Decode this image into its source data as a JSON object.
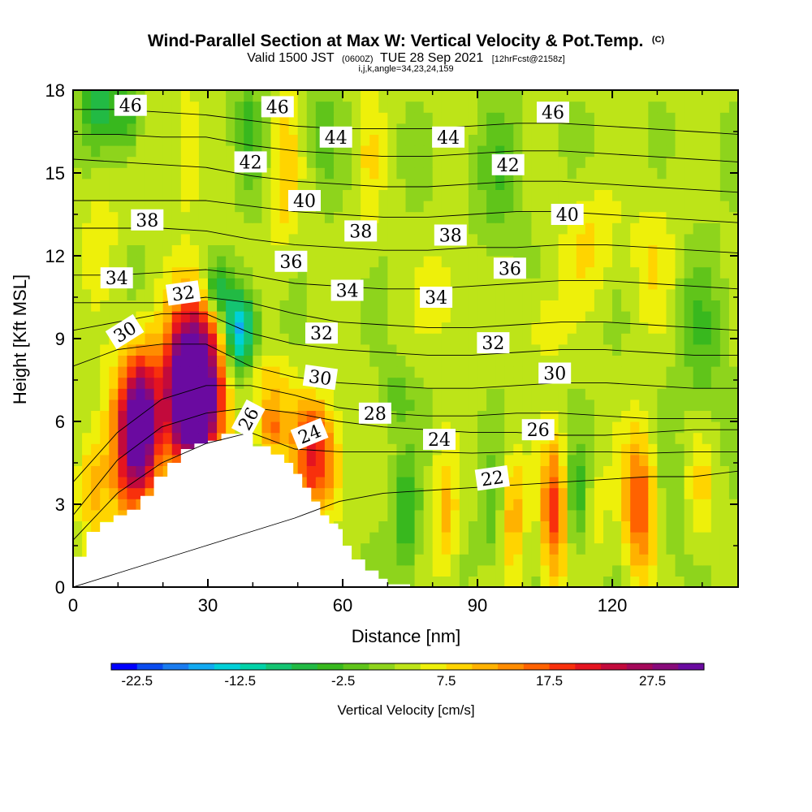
{
  "chart_data": {
    "type": "heatmap",
    "title": "Wind-Parallel Section at Max W: Vertical Velocity & Pot.Temp.",
    "title_suffix": "(C)",
    "subtitle_valid": "Valid 1500 JST",
    "subtitle_utc": "(0600Z)",
    "subtitle_date": "TUE 28 Sep 2021",
    "subtitle_fcst": "[12hrFcst@2158z]",
    "meta_line": "i,j,k,angle=34,23,24,159",
    "xlabel": "Distance [nm]",
    "ylabel": "Height [Kft MSL]",
    "xlim": [
      0,
      148
    ],
    "ylim": [
      0,
      18
    ],
    "x_ticks": [
      "0",
      "30",
      "60",
      "90",
      "120"
    ],
    "y_ticks": [
      "0",
      "3",
      "6",
      "9",
      "12",
      "15",
      "18"
    ],
    "colorbar": {
      "title": "Vertical Velocity [cm/s]",
      "tick_labels": [
        "-22.5",
        "-12.5",
        "-2.5",
        "7.5",
        "17.5",
        "27.5"
      ],
      "colors": [
        "#0000ff",
        "#0a4cf0",
        "#1a7cf0",
        "#12aaf2",
        "#00d0d8",
        "#00d2a8",
        "#14c472",
        "#22ba44",
        "#38b81e",
        "#60c41a",
        "#8ed41c",
        "#bde418",
        "#eef00a",
        "#ffd400",
        "#ffb200",
        "#ff8c00",
        "#ff6200",
        "#f8300c",
        "#e41420",
        "#c20a3c",
        "#a4085a",
        "#880a7a",
        "#6a0aa0"
      ]
    },
    "terrain_profile": [
      {
        "x": 0,
        "h": 1.1
      },
      {
        "x": 3,
        "h": 2.0
      },
      {
        "x": 6,
        "h": 2.35
      },
      {
        "x": 9,
        "h": 2.6
      },
      {
        "x": 12,
        "h": 2.8
      },
      {
        "x": 15,
        "h": 3.3
      },
      {
        "x": 18,
        "h": 4.0
      },
      {
        "x": 21,
        "h": 4.5
      },
      {
        "x": 24,
        "h": 5.0
      },
      {
        "x": 27,
        "h": 5.2
      },
      {
        "x": 30,
        "h": 5.3
      },
      {
        "x": 33,
        "h": 5.55
      },
      {
        "x": 37,
        "h": 5.55
      },
      {
        "x": 40,
        "h": 5.1
      },
      {
        "x": 44,
        "h": 4.8
      },
      {
        "x": 47,
        "h": 4.5
      },
      {
        "x": 49,
        "h": 4.1
      },
      {
        "x": 51,
        "h": 3.6
      },
      {
        "x": 53,
        "h": 3.1
      },
      {
        "x": 55,
        "h": 2.6
      },
      {
        "x": 57,
        "h": 2.3
      },
      {
        "x": 59,
        "h": 2.1
      },
      {
        "x": 60,
        "h": 1.5
      },
      {
        "x": 62,
        "h": 1.0
      },
      {
        "x": 65,
        "h": 0.6
      },
      {
        "x": 68,
        "h": 0.3
      },
      {
        "x": 70,
        "h": 0.1
      },
      {
        "x": 75,
        "h": 0
      }
    ],
    "vertical_velocity_cells": [
      {
        "x": 27,
        "y": 7.8,
        "sx": 6,
        "sy": 2.6,
        "w": 32
      },
      {
        "x": 26,
        "y": 6.2,
        "sx": 6,
        "sy": 2.5,
        "w": 20
      },
      {
        "x": 15,
        "y": 6.0,
        "sx": 4,
        "sy": 2.4,
        "w": 26
      },
      {
        "x": 12,
        "y": 5.0,
        "sx": 6,
        "sy": 3.0,
        "w": 12
      },
      {
        "x": 4,
        "y": 3.6,
        "sx": 3,
        "sy": 1.8,
        "w": 7
      },
      {
        "x": 37,
        "y": 9.3,
        "sx": 3.5,
        "sy": 1.5,
        "w": -20
      },
      {
        "x": 32,
        "y": 10.8,
        "sx": 3,
        "sy": 1.0,
        "w": -10
      },
      {
        "x": 44,
        "y": 5.8,
        "sx": 3,
        "sy": 1.0,
        "w": 12
      },
      {
        "x": 54,
        "y": 4.4,
        "sx": 5,
        "sy": 1.7,
        "w": 17
      },
      {
        "x": 53,
        "y": 6.0,
        "sx": 5,
        "sy": 1.0,
        "w": 8
      },
      {
        "x": 44,
        "y": 7.5,
        "sx": 5,
        "sy": 1.0,
        "w": 6
      },
      {
        "x": 74,
        "y": 2.6,
        "sx": 2.8,
        "sy": 2.0,
        "w": -9
      },
      {
        "x": 83,
        "y": 2.5,
        "sx": 2.6,
        "sy": 2.3,
        "w": 8
      },
      {
        "x": 93,
        "y": 2.6,
        "sx": 2.6,
        "sy": 2.0,
        "w": -5
      },
      {
        "x": 98,
        "y": 2.6,
        "sx": 2.6,
        "sy": 2.2,
        "w": 9
      },
      {
        "x": 107,
        "y": 2.8,
        "sx": 2.8,
        "sy": 2.5,
        "w": 16
      },
      {
        "x": 112,
        "y": 3.3,
        "sx": 2.4,
        "sy": 1.8,
        "w": -7
      },
      {
        "x": 117,
        "y": 2.8,
        "sx": 2.4,
        "sy": 2.0,
        "w": 3
      },
      {
        "x": 126,
        "y": 3.0,
        "sx": 3.5,
        "sy": 2.6,
        "w": 15
      },
      {
        "x": 133,
        "y": 3.0,
        "sx": 2.5,
        "sy": 2.0,
        "w": -3
      },
      {
        "x": 140,
        "y": 3.5,
        "sx": 3,
        "sy": 2.0,
        "w": 5
      },
      {
        "x": 6,
        "y": 17.5,
        "sx": 4,
        "sy": 1.4,
        "w": -10
      },
      {
        "x": 12,
        "y": 17.0,
        "sx": 2.8,
        "sy": 1.4,
        "w": -7
      },
      {
        "x": 25,
        "y": 16.0,
        "sx": 3,
        "sy": 2.5,
        "w": 5
      },
      {
        "x": 39,
        "y": 16.5,
        "sx": 3,
        "sy": 2.0,
        "w": -6
      },
      {
        "x": 47,
        "y": 15.0,
        "sx": 3,
        "sy": 3.0,
        "w": 6
      },
      {
        "x": 56,
        "y": 16.5,
        "sx": 3,
        "sy": 2.0,
        "w": -4
      },
      {
        "x": 66,
        "y": 15.5,
        "sx": 3,
        "sy": 3.0,
        "w": 4
      },
      {
        "x": 95,
        "y": 15.0,
        "sx": 5,
        "sy": 2.5,
        "w": -5
      },
      {
        "x": 115,
        "y": 12.5,
        "sx": 6,
        "sy": 2.0,
        "w": 5
      },
      {
        "x": 129,
        "y": 12.0,
        "sx": 5,
        "sy": 2.5,
        "w": 4
      },
      {
        "x": 82,
        "y": 10.5,
        "sx": 5,
        "sy": 1.8,
        "w": 4
      },
      {
        "x": 105,
        "y": 9.5,
        "sx": 5,
        "sy": 1.5,
        "w": 4
      },
      {
        "x": 72,
        "y": 7.0,
        "sx": 4,
        "sy": 1.2,
        "w": -4
      },
      {
        "x": 140,
        "y": 9.0,
        "sx": 5,
        "sy": 3.0,
        "w": -5
      },
      {
        "x": 6,
        "y": 13.0,
        "sx": 4,
        "sy": 2.0,
        "w": 4
      }
    ],
    "theta_level_heights": [
      {
        "theta": 22,
        "h": [
          0,
          0.5,
          1.0,
          1.5,
          2.0,
          2.5,
          3.1,
          3.4,
          3.5,
          3.6,
          3.7,
          3.8,
          3.9,
          4.0,
          4.0,
          4.2
        ]
      },
      {
        "theta": 24,
        "h": [
          1.7,
          3.4,
          4.5,
          5.2,
          5.6,
          5.0,
          4.9,
          4.9,
          4.9,
          4.85,
          4.9,
          4.9,
          4.9,
          4.85,
          4.9,
          4.9
        ]
      },
      {
        "theta": 26,
        "h": [
          2.6,
          4.6,
          5.8,
          6.3,
          6.5,
          6.3,
          6.0,
          5.8,
          5.7,
          5.6,
          5.6,
          5.5,
          5.5,
          5.6,
          5.7,
          5.7
        ]
      },
      {
        "theta": 28,
        "h": [
          3.8,
          5.6,
          6.8,
          7.3,
          7.3,
          6.95,
          6.5,
          6.3,
          6.2,
          6.2,
          6.3,
          6.3,
          6.2,
          6.1,
          6.1,
          6.1
        ]
      },
      {
        "theta": 30,
        "h": [
          8.0,
          8.6,
          8.8,
          8.8,
          8.0,
          7.6,
          7.4,
          7.3,
          7.2,
          7.2,
          7.3,
          7.4,
          7.4,
          7.3,
          7.2,
          7.2
        ]
      },
      {
        "theta": 32,
        "h": [
          9.3,
          9.6,
          9.9,
          9.9,
          9.2,
          8.8,
          8.6,
          8.5,
          8.4,
          8.4,
          8.5,
          8.6,
          8.6,
          8.5,
          8.4,
          8.4
        ]
      },
      {
        "theta": 34,
        "h": [
          10.3,
          10.3,
          10.3,
          10.5,
          10.3,
          9.9,
          9.6,
          9.5,
          9.4,
          9.4,
          9.5,
          9.6,
          9.6,
          9.5,
          9.4,
          9.3
        ]
      },
      {
        "theta": 36,
        "h": [
          11.3,
          11.3,
          11.4,
          11.5,
          11.3,
          11.0,
          10.9,
          10.8,
          10.8,
          10.9,
          11.0,
          11.1,
          11.1,
          11.0,
          10.9,
          10.8
        ]
      },
      {
        "theta": 38,
        "h": [
          13.0,
          13.0,
          13.0,
          12.9,
          12.6,
          12.4,
          12.3,
          12.2,
          12.2,
          12.3,
          12.3,
          12.4,
          12.4,
          12.3,
          12.2,
          12.1
        ]
      },
      {
        "theta": 40,
        "h": [
          14.0,
          14.0,
          14.0,
          14.0,
          13.8,
          13.6,
          13.5,
          13.4,
          13.4,
          13.5,
          13.6,
          13.6,
          13.5,
          13.4,
          13.3,
          13.2
        ]
      },
      {
        "theta": 42,
        "h": [
          15.5,
          15.4,
          15.3,
          15.2,
          14.9,
          14.7,
          14.6,
          14.5,
          14.5,
          14.6,
          14.7,
          14.7,
          14.6,
          14.5,
          14.4,
          14.3
        ]
      },
      {
        "theta": 44,
        "h": [
          16.4,
          16.4,
          16.3,
          16.3,
          16.0,
          15.8,
          15.7,
          15.6,
          15.6,
          15.7,
          15.8,
          15.8,
          15.7,
          15.6,
          15.5,
          15.4
        ]
      },
      {
        "theta": 46,
        "h": [
          17.3,
          17.3,
          17.2,
          17.1,
          16.9,
          16.7,
          16.6,
          16.6,
          16.6,
          16.7,
          16.8,
          16.8,
          16.7,
          16.6,
          16.5,
          16.4
        ]
      }
    ],
    "contour_labels": [
      {
        "text": "46",
        "x": 12.8,
        "y": 17.45,
        "rot": 0
      },
      {
        "text": "46",
        "x": 45.5,
        "y": 17.4,
        "rot": 0
      },
      {
        "text": "46",
        "x": 106.8,
        "y": 17.2,
        "rot": 0
      },
      {
        "text": "44",
        "x": 58.5,
        "y": 16.3,
        "rot": 0
      },
      {
        "text": "44",
        "x": 83.5,
        "y": 16.3,
        "rot": 0
      },
      {
        "text": "42",
        "x": 39.5,
        "y": 15.4,
        "rot": 0
      },
      {
        "text": "42",
        "x": 96.8,
        "y": 15.3,
        "rot": 0
      },
      {
        "text": "40",
        "x": 51.5,
        "y": 14.0,
        "rot": 0
      },
      {
        "text": "40",
        "x": 110,
        "y": 13.5,
        "rot": 0
      },
      {
        "text": "38",
        "x": 16.5,
        "y": 13.3,
        "rot": 0
      },
      {
        "text": "38",
        "x": 64.0,
        "y": 12.9,
        "rot": 0
      },
      {
        "text": "38",
        "x": 84.0,
        "y": 12.75,
        "rot": 0
      },
      {
        "text": "36",
        "x": 48.5,
        "y": 11.8,
        "rot": 0
      },
      {
        "text": "36",
        "x": 97.2,
        "y": 11.55,
        "rot": 0
      },
      {
        "text": "34",
        "x": 9.7,
        "y": 11.2,
        "rot": 0
      },
      {
        "text": "34",
        "x": 61.0,
        "y": 10.75,
        "rot": 0
      },
      {
        "text": "34",
        "x": 80.8,
        "y": 10.5,
        "rot": 0
      },
      {
        "text": "32",
        "x": 24.5,
        "y": 10.65,
        "rot": -8
      },
      {
        "text": "32",
        "x": 55.3,
        "y": 9.2,
        "rot": 0
      },
      {
        "text": "32",
        "x": 93.5,
        "y": 8.85,
        "rot": 0
      },
      {
        "text": "30",
        "x": 11.5,
        "y": 9.25,
        "rot": -32
      },
      {
        "text": "30",
        "x": 55.0,
        "y": 7.6,
        "rot": 8
      },
      {
        "text": "30",
        "x": 107.2,
        "y": 7.75,
        "rot": 0
      },
      {
        "text": "28",
        "x": 67.2,
        "y": 6.3,
        "rot": 0
      },
      {
        "text": "26",
        "x": 39.0,
        "y": 6.1,
        "rot": -62
      },
      {
        "text": "26",
        "x": 103.5,
        "y": 5.7,
        "rot": 0
      },
      {
        "text": "24",
        "x": 52.6,
        "y": 5.55,
        "rot": -22
      },
      {
        "text": "24",
        "x": 81.5,
        "y": 5.35,
        "rot": 0
      },
      {
        "text": "22",
        "x": 93.3,
        "y": 3.95,
        "rot": -8
      }
    ]
  }
}
